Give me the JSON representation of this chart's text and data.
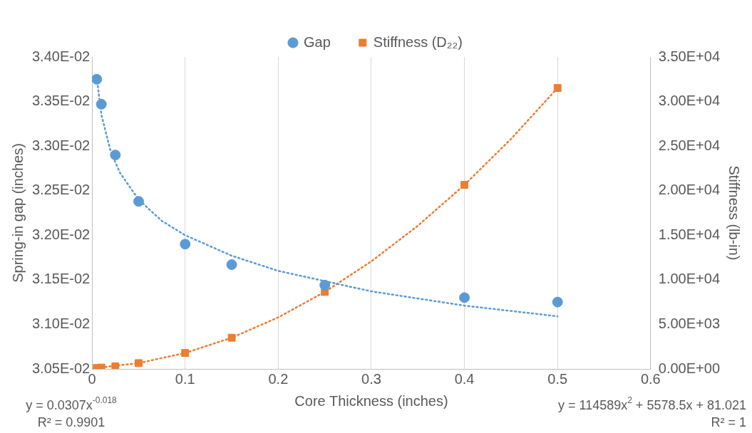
{
  "chart_data": {
    "type": "scatter",
    "xlabel": "Core Thickness (inches)",
    "ylabel": "Spring-in gap (inches)",
    "y2label": "Stiffness (lb-in)",
    "xlim": [
      0,
      0.6
    ],
    "xticks": [
      0,
      0.1,
      0.2,
      0.3,
      0.4,
      0.5,
      0.6
    ],
    "ylim": [
      0.0305,
      0.034
    ],
    "yticks": [
      {
        "value": 0.0305,
        "label": "3.05E-02"
      },
      {
        "value": 0.031,
        "label": "3.10E-02"
      },
      {
        "value": 0.0315,
        "label": "3.15E-02"
      },
      {
        "value": 0.032,
        "label": "3.20E-02"
      },
      {
        "value": 0.0325,
        "label": "3.25E-02"
      },
      {
        "value": 0.033,
        "label": "3.30E-02"
      },
      {
        "value": 0.0335,
        "label": "3.35E-02"
      },
      {
        "value": 0.034,
        "label": "3.40E-02"
      }
    ],
    "y2lim": [
      0,
      35000
    ],
    "y2ticks": [
      {
        "value": 0,
        "label": "0.00E+00"
      },
      {
        "value": 5000,
        "label": "5.00E+03"
      },
      {
        "value": 10000,
        "label": "1.00E+04"
      },
      {
        "value": 15000,
        "label": "1.50E+04"
      },
      {
        "value": 20000,
        "label": "2.00E+04"
      },
      {
        "value": 25000,
        "label": "2.50E+04"
      },
      {
        "value": 30000,
        "label": "3.00E+04"
      },
      {
        "value": 35000,
        "label": "3.50E+04"
      }
    ],
    "grid": "x",
    "legend": "top",
    "series": [
      {
        "name": "Gap",
        "type": "scatter",
        "marker": "circle",
        "color": "#5b9bd5",
        "x": [
          0.005,
          0.01,
          0.025,
          0.05,
          0.1,
          0.15,
          0.25,
          0.4,
          0.5
        ],
        "values": [
          0.03375,
          0.03347,
          0.0329,
          0.03238,
          0.0319,
          0.03167,
          0.03144,
          0.0313,
          0.03125
        ]
      },
      {
        "name": "Stiffness (D₂₂)",
        "type": "scatter",
        "axis": "y2",
        "marker": "square",
        "color": "#ed7d31",
        "x": [
          0.005,
          0.01,
          0.025,
          0.05,
          0.1,
          0.15,
          0.25,
          0.4,
          0.5
        ],
        "values": [
          110,
          150,
          290,
          650,
          1790,
          3500,
          8640,
          20650,
          31520
        ]
      },
      {
        "type": "line",
        "marker": "none",
        "line_style": "dotted",
        "color": "#5b9bd5",
        "x": [
          0.005,
          0.01,
          0.02,
          0.03,
          0.05,
          0.075,
          0.1,
          0.15,
          0.2,
          0.3,
          0.4,
          0.5
        ],
        "values": [
          0.03377,
          0.03335,
          0.03294,
          0.0327,
          0.0324,
          0.03216,
          0.032,
          0.03177,
          0.0316,
          0.03137,
          0.03121,
          0.03109
        ]
      },
      {
        "type": "line",
        "axis": "y2",
        "marker": "none",
        "line_style": "dotted",
        "color": "#ed7d31",
        "x": [
          0.005,
          0.05,
          0.1,
          0.15,
          0.2,
          0.25,
          0.3,
          0.35,
          0.4,
          0.45,
          0.5
        ],
        "values": [
          110,
          650,
          1790,
          3500,
          5780,
          8640,
          12070,
          16070,
          20650,
          25800,
          31520
        ]
      }
    ],
    "annotations": [
      "y = 0.0307x$^{-0.018}$",
      "R² = 0.9901",
      "y = 114589x$^{2}$ + 5578.5x + 81.021",
      "R² = 1"
    ]
  }
}
